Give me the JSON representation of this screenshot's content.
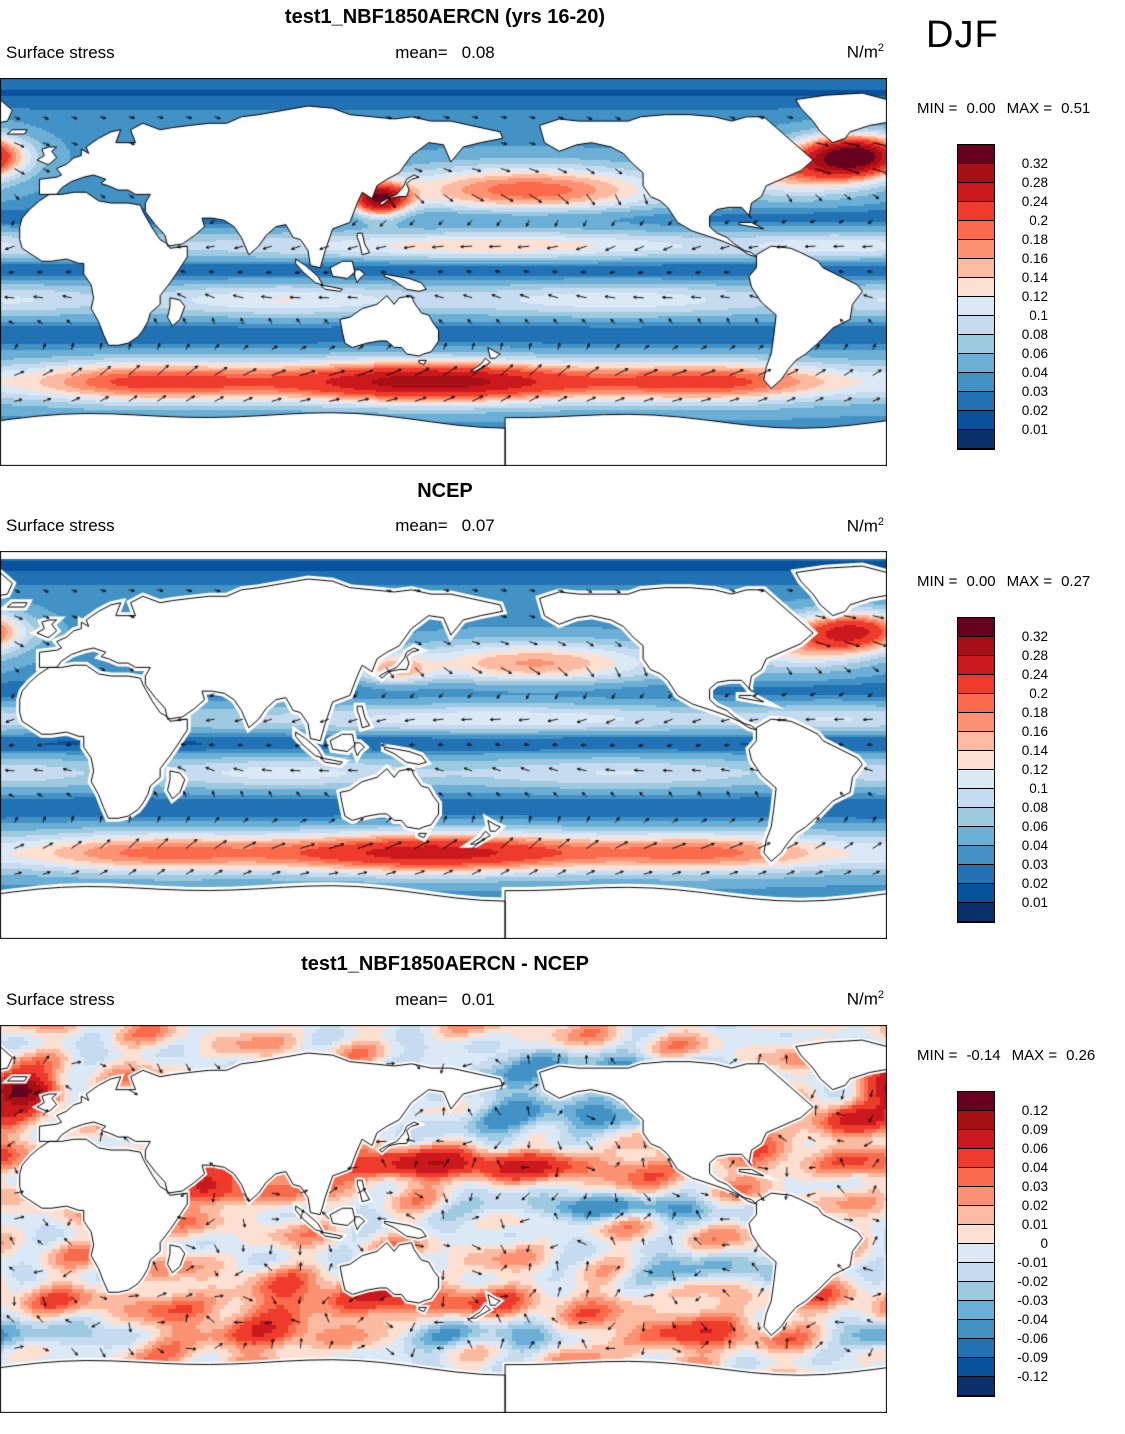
{
  "season": "DJF",
  "colors": {
    "palette": [
      "#67001f",
      "#a50f15",
      "#cb181d",
      "#ef3b2c",
      "#fb6a4a",
      "#fc9272",
      "#fcbba1",
      "#fee0d2",
      "#dbe9f6",
      "#c6dbef",
      "#9ecae1",
      "#6baed6",
      "#4292c6",
      "#2171b5",
      "#08519c",
      "#08306b"
    ],
    "land": "#ffffff",
    "coastline": "#000000",
    "vector": "#000000"
  },
  "panels": [
    {
      "title": "test1_NBF1850AERCN (yrs 16-20)",
      "variable": "Surface stress",
      "mean_label": "mean=",
      "mean_value": "0.08",
      "units": "N/m",
      "units_exp": "2",
      "min_label": "MIN =",
      "min_value": "0.00",
      "max_label": "MAX =",
      "max_value": "0.51",
      "colorbar_labels": [
        "0.32",
        "0.28",
        "0.24",
        "0.2",
        "0.18",
        "0.16",
        "0.14",
        "0.12",
        "0.1",
        "0.08",
        "0.06",
        "0.04",
        "0.03",
        "0.02",
        "0.01"
      ]
    },
    {
      "title": "NCEP",
      "variable": "Surface stress",
      "mean_label": "mean=",
      "mean_value": "0.07",
      "units": "N/m",
      "units_exp": "2",
      "min_label": "MIN =",
      "min_value": "0.00",
      "max_label": "MAX =",
      "max_value": "0.27",
      "colorbar_labels": [
        "0.32",
        "0.28",
        "0.24",
        "0.2",
        "0.18",
        "0.16",
        "0.14",
        "0.12",
        "0.1",
        "0.08",
        "0.06",
        "0.04",
        "0.03",
        "0.02",
        "0.01"
      ]
    },
    {
      "title": "test1_NBF1850AERCN - NCEP",
      "variable": "Surface stress",
      "mean_label": "mean=",
      "mean_value": "0.01",
      "units": "N/m",
      "units_exp": "2",
      "min_label": "MIN =",
      "min_value": "-0.14",
      "max_label": "MAX =",
      "max_value": "0.26",
      "colorbar_labels": [
        "0.12",
        "0.09",
        "0.06",
        "0.04",
        "0.03",
        "0.02",
        "0.01",
        "0",
        "-0.01",
        "-0.02",
        "-0.03",
        "-0.04",
        "-0.06",
        "-0.09",
        "-0.12"
      ]
    }
  ],
  "chart_data": [
    {
      "type": "heatmap",
      "title": "test1_NBF1850AERCN (yrs 16-20)",
      "variable": "Surface stress",
      "season": "DJF",
      "units": "N/m^2",
      "mean": 0.08,
      "min": 0.0,
      "max": 0.51,
      "levels": [
        0.32,
        0.28,
        0.24,
        0.2,
        0.18,
        0.16,
        0.14,
        0.12,
        0.1,
        0.08,
        0.06,
        0.04,
        0.03,
        0.02,
        0.01
      ],
      "projection": "global lat-lon filled-contour map with surface-stress vector overlay",
      "notable_features": "strong maxima (red) in North Atlantic storm track, Kuroshio/East Asia region and Southern Ocean westerlies; minima (dark blue) along equator and subtropical gyres"
    },
    {
      "type": "heatmap",
      "title": "NCEP",
      "variable": "Surface stress",
      "season": "DJF",
      "units": "N/m^2",
      "mean": 0.07,
      "min": 0.0,
      "max": 0.27,
      "levels": [
        0.32,
        0.28,
        0.24,
        0.2,
        0.18,
        0.16,
        0.14,
        0.12,
        0.1,
        0.08,
        0.06,
        0.04,
        0.03,
        0.02,
        0.01
      ],
      "projection": "global lat-lon filled-contour map with surface-stress vector overlay",
      "notable_features": "same pattern as model but weaker maxima; white missing-data margin around coasts and poles"
    },
    {
      "type": "heatmap",
      "title": "test1_NBF1850AERCN - NCEP",
      "variable": "Surface stress difference",
      "season": "DJF",
      "units": "N/m^2",
      "mean": 0.01,
      "min": -0.14,
      "max": 0.26,
      "levels": [
        0.12,
        0.09,
        0.06,
        0.04,
        0.03,
        0.02,
        0.01,
        0,
        -0.01,
        -0.02,
        -0.03,
        -0.04,
        -0.06,
        -0.09,
        -0.12
      ],
      "projection": "global lat-lon filled-contour difference map with vector overlay",
      "notable_features": "model stronger (red) in NW Pacific subtropics, Indian Ocean and Norwegian Sea; weaker (blue) in central North Pacific and equatorial east Pacific"
    }
  ]
}
